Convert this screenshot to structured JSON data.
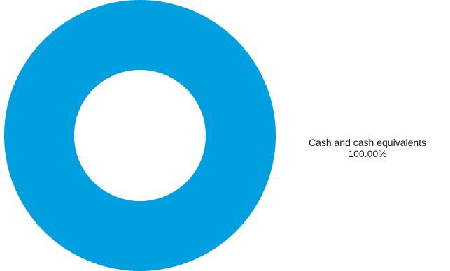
{
  "chart_data": {
    "type": "pie",
    "variant": "donut",
    "title": "",
    "slices": [
      {
        "label": "Cash and cash equivalents",
        "value": 100.0,
        "value_label": "100.00%",
        "color": "#009fdf"
      }
    ],
    "legend": "none"
  }
}
